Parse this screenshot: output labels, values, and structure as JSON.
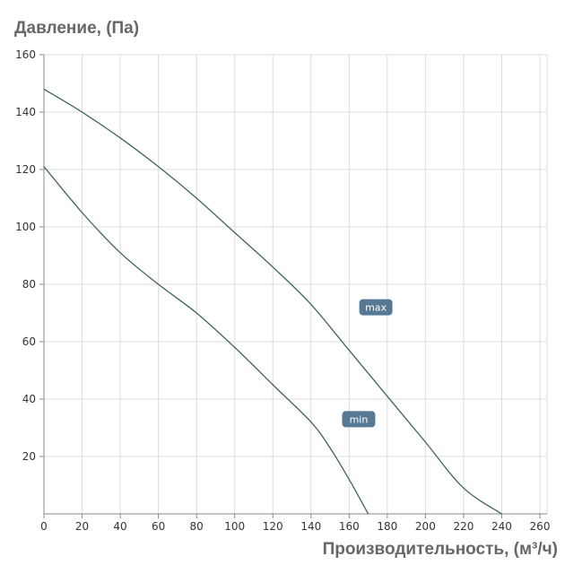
{
  "chart_data": {
    "type": "line",
    "ylabel": "Давление, (Па)",
    "xlabel": "Производительность, (м³/ч)",
    "xlim": [
      0,
      260
    ],
    "ylim": [
      0,
      160
    ],
    "xticks": [
      0,
      20,
      40,
      60,
      80,
      100,
      120,
      140,
      160,
      180,
      200,
      220,
      240,
      260
    ],
    "yticks": [
      20,
      40,
      60,
      80,
      100,
      120,
      140,
      160
    ],
    "grid": true,
    "series": [
      {
        "name": "max",
        "color": "#3d6266",
        "label_at": [
          174,
          72
        ],
        "x": [
          0,
          20,
          40,
          60,
          80,
          100,
          120,
          140,
          160,
          180,
          200,
          220,
          240
        ],
        "y": [
          148,
          140,
          131,
          121,
          110,
          98,
          86,
          73,
          57,
          41,
          25,
          9,
          0
        ]
      },
      {
        "name": "min",
        "color": "#3d6266",
        "label_at": [
          165,
          33
        ],
        "x": [
          0,
          20,
          40,
          60,
          80,
          100,
          120,
          140,
          150,
          160,
          170
        ],
        "y": [
          121,
          105,
          91,
          80,
          70,
          58,
          45,
          32,
          23,
          12,
          0
        ]
      }
    ],
    "label_color": "#567a96"
  }
}
